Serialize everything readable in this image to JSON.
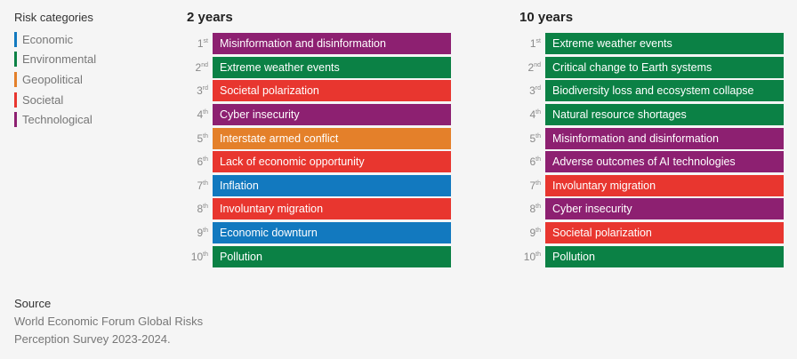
{
  "legend": {
    "title": "Risk categories",
    "items": [
      {
        "label": "Economic",
        "color": "#1279bf"
      },
      {
        "label": "Environmental",
        "color": "#0b8145"
      },
      {
        "label": "Geopolitical",
        "color": "#e4802a"
      },
      {
        "label": "Societal",
        "color": "#e8362f"
      },
      {
        "label": "Technological",
        "color": "#8d2071"
      }
    ]
  },
  "source": {
    "title": "Source",
    "text": "World Economic Forum Global Risks Perception Survey 2023-2024."
  },
  "chart_data": [
    {
      "type": "table",
      "title": "2 years",
      "rows": [
        {
          "rank": "1",
          "suffix": "st",
          "label": "Misinformation and disinformation",
          "category": "Technological"
        },
        {
          "rank": "2",
          "suffix": "nd",
          "label": "Extreme weather events",
          "category": "Environmental"
        },
        {
          "rank": "3",
          "suffix": "rd",
          "label": "Societal polarization",
          "category": "Societal"
        },
        {
          "rank": "4",
          "suffix": "th",
          "label": "Cyber insecurity",
          "category": "Technological"
        },
        {
          "rank": "5",
          "suffix": "th",
          "label": "Interstate armed conflict",
          "category": "Geopolitical"
        },
        {
          "rank": "6",
          "suffix": "th",
          "label": "Lack of economic opportunity",
          "category": "Societal"
        },
        {
          "rank": "7",
          "suffix": "th",
          "label": "Inflation",
          "category": "Economic"
        },
        {
          "rank": "8",
          "suffix": "th",
          "label": "Involuntary migration",
          "category": "Societal"
        },
        {
          "rank": "9",
          "suffix": "th",
          "label": "Economic downturn",
          "category": "Economic"
        },
        {
          "rank": "10",
          "suffix": "th",
          "label": "Pollution",
          "category": "Environmental"
        }
      ]
    },
    {
      "type": "table",
      "title": "10 years",
      "rows": [
        {
          "rank": "1",
          "suffix": "st",
          "label": "Extreme weather events",
          "category": "Environmental"
        },
        {
          "rank": "2",
          "suffix": "nd",
          "label": "Critical change to Earth systems",
          "category": "Environmental"
        },
        {
          "rank": "3",
          "suffix": "rd",
          "label": "Biodiversity loss and ecosystem collapse",
          "category": "Environmental"
        },
        {
          "rank": "4",
          "suffix": "th",
          "label": "Natural resource shortages",
          "category": "Environmental"
        },
        {
          "rank": "5",
          "suffix": "th",
          "label": "Misinformation and disinformation",
          "category": "Technological"
        },
        {
          "rank": "6",
          "suffix": "th",
          "label": "Adverse outcomes of AI technologies",
          "category": "Technological"
        },
        {
          "rank": "7",
          "suffix": "th",
          "label": "Involuntary migration",
          "category": "Societal"
        },
        {
          "rank": "8",
          "suffix": "th",
          "label": "Cyber insecurity",
          "category": "Technological"
        },
        {
          "rank": "9",
          "suffix": "th",
          "label": "Societal polarization",
          "category": "Societal"
        },
        {
          "rank": "10",
          "suffix": "th",
          "label": "Pollution",
          "category": "Environmental"
        }
      ]
    }
  ]
}
